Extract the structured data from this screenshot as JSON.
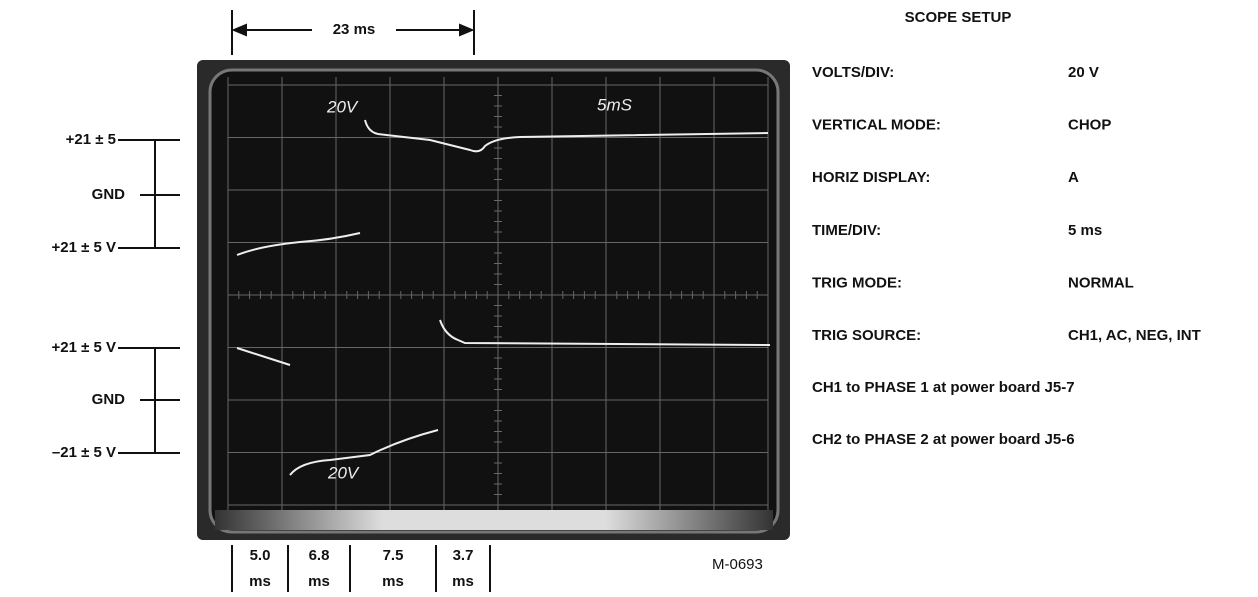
{
  "dimension": {
    "label": "23 ms"
  },
  "left_labels": {
    "ch1": [
      "+21 ± 5",
      "GND",
      "+21 ± 5 V"
    ],
    "ch2": [
      "+21 ± 5 V",
      "GND",
      "–21 ± 5 V"
    ]
  },
  "screen": {
    "ch1_volts": "20V",
    "time_div": "5mS",
    "ch2_volts": "20V"
  },
  "time_segments": [
    {
      "value": "5.0",
      "unit": "ms"
    },
    {
      "value": "6.8",
      "unit": "ms"
    },
    {
      "value": "7.5",
      "unit": "ms"
    },
    {
      "value": "3.7",
      "unit": "ms"
    }
  ],
  "figure_id": "M-0693",
  "setup": {
    "title": "SCOPE SETUP",
    "rows": [
      {
        "label": "VOLTS/DIV:",
        "value": "20 V"
      },
      {
        "label": "VERTICAL MODE:",
        "value": "CHOP"
      },
      {
        "label": "HORIZ DISPLAY:",
        "value": "A"
      },
      {
        "label": "TIME/DIV:",
        "value": "5 ms"
      },
      {
        "label": "TRIG MODE:",
        "value": "NORMAL"
      },
      {
        "label": "TRIG SOURCE:",
        "value": "CH1, AC, NEG, INT"
      }
    ],
    "notes": [
      "CH1 to PHASE 1 at power board J5-7",
      "CH2 to PHASE 2 at power board J5-6"
    ]
  }
}
